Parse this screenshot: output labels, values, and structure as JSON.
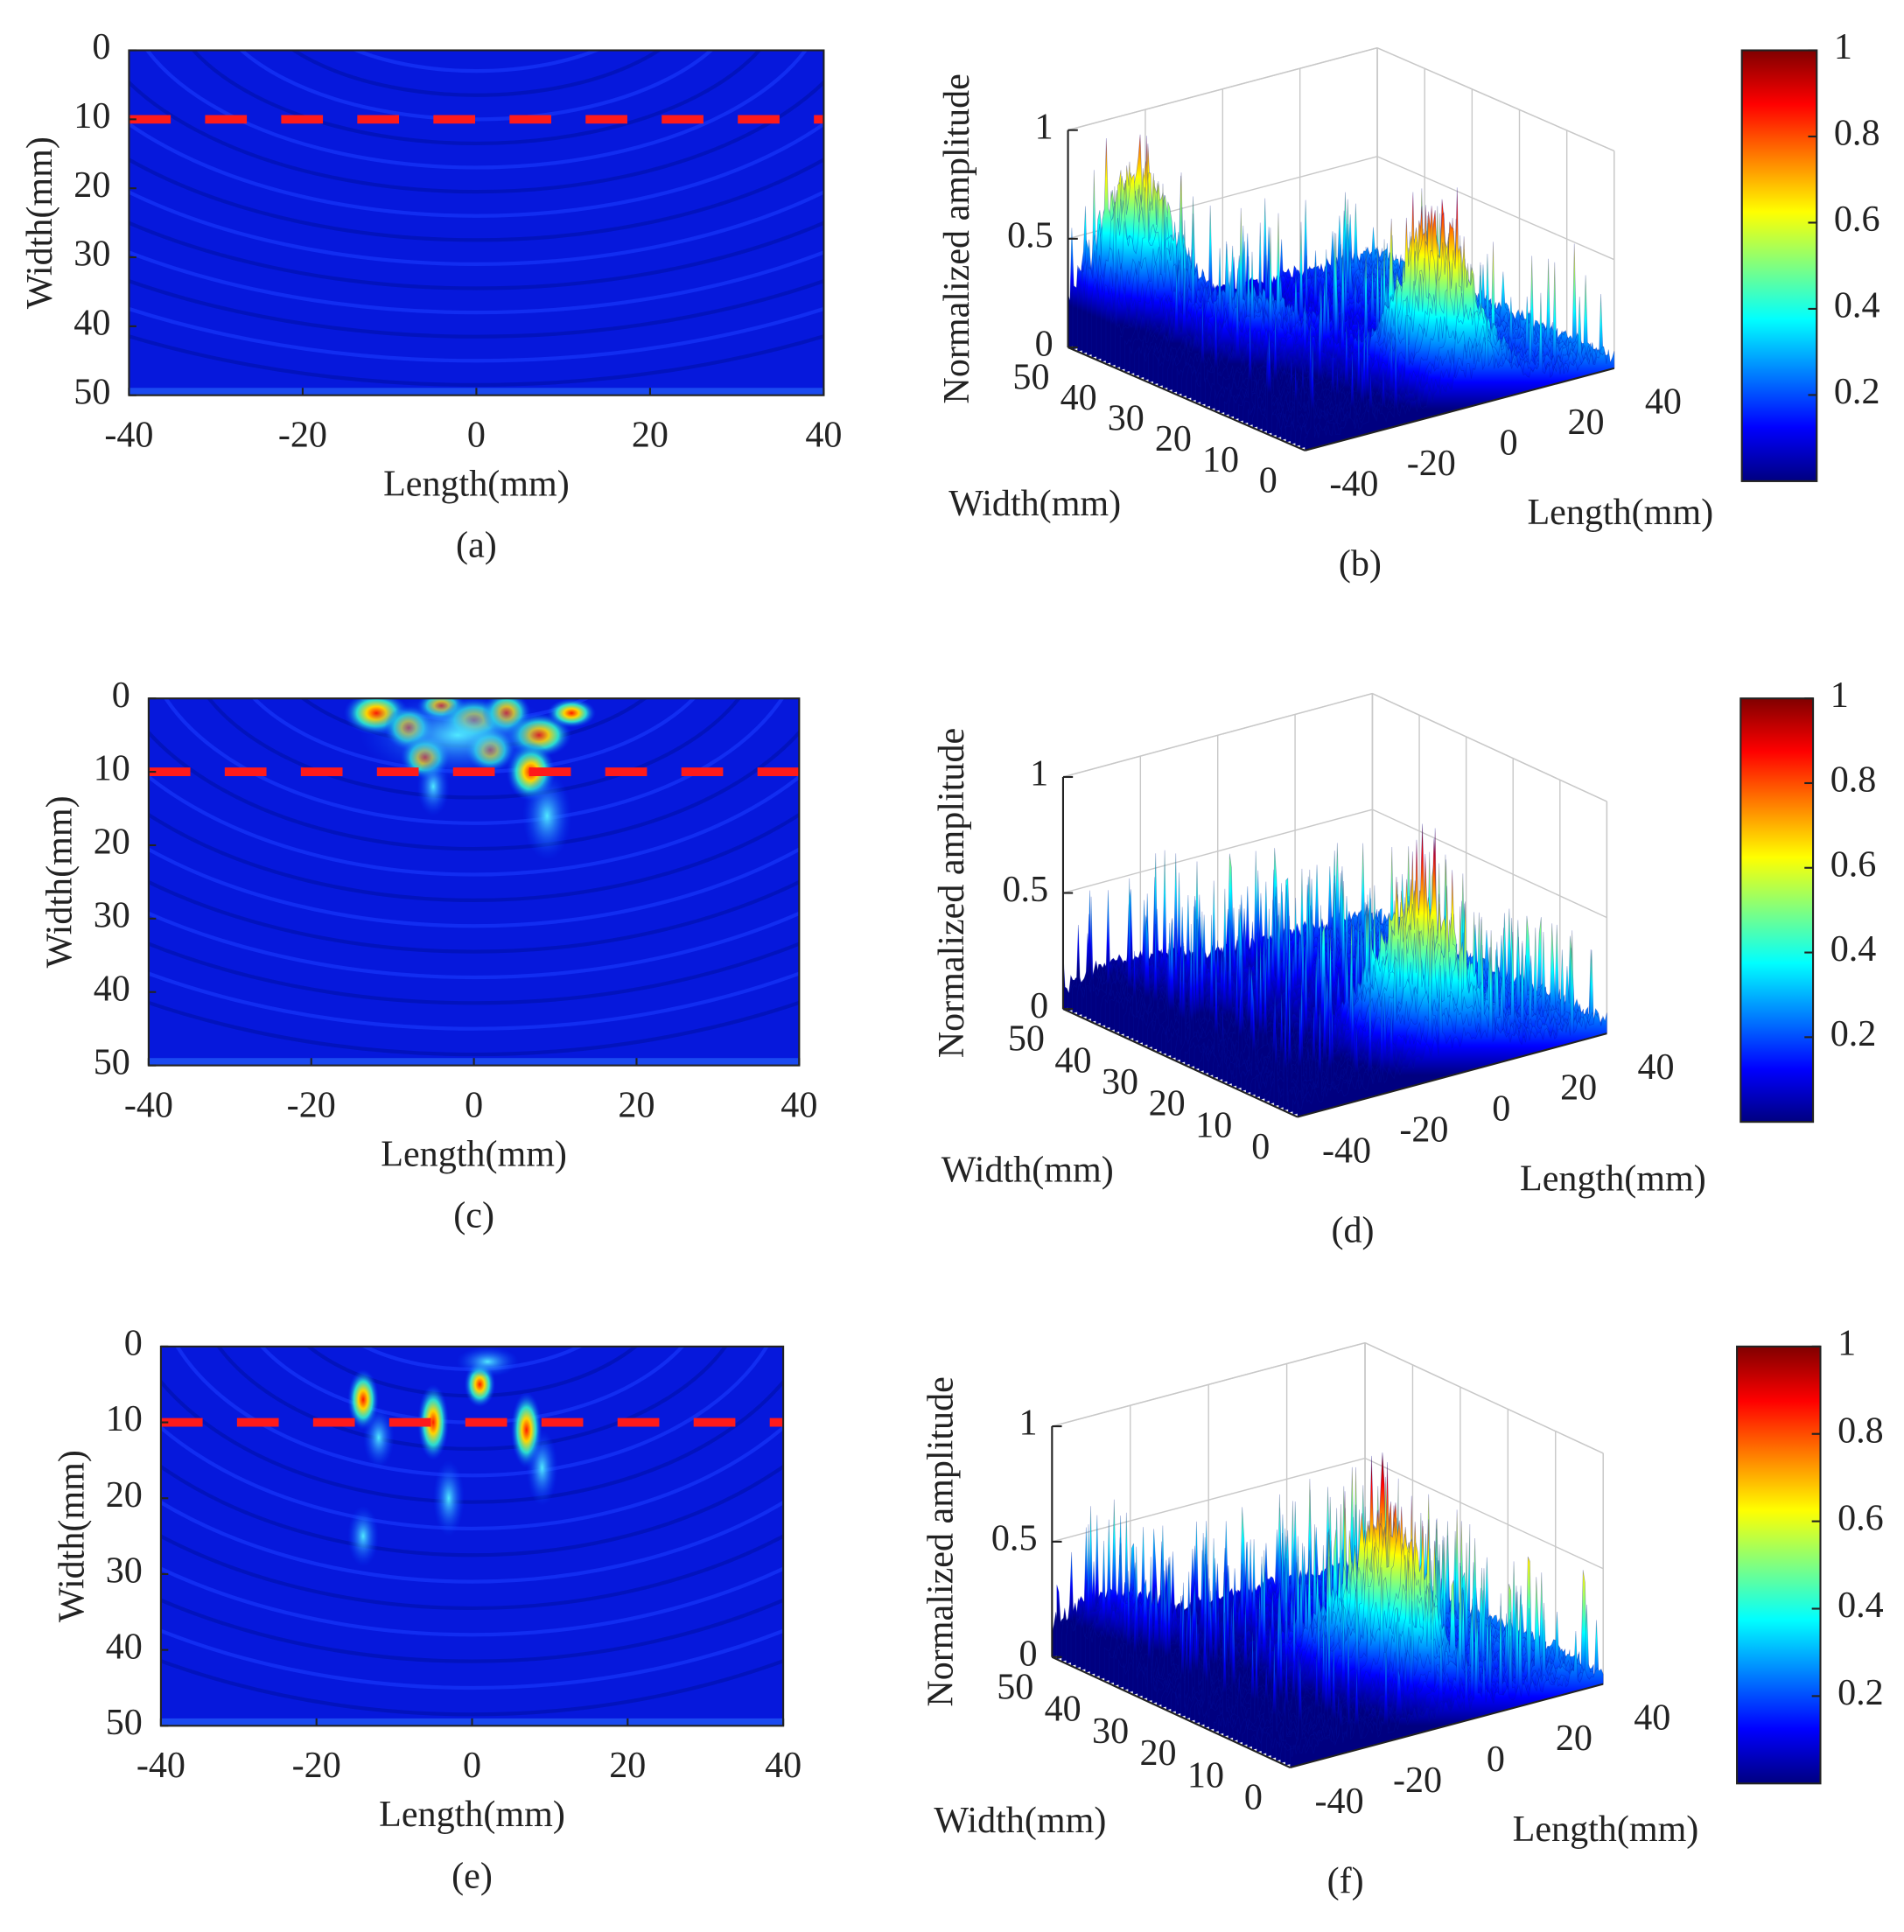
{
  "chart_data": [
    {
      "type": "heatmap",
      "caption": "(a)",
      "xlabel": "Length(mm)",
      "ylabel": "Width(mm)",
      "xlim": [
        -40,
        40
      ],
      "ylim": [
        0,
        50
      ],
      "yreverse": true,
      "xticks": [
        -40,
        -20,
        0,
        20,
        40
      ],
      "yticks": [
        0,
        10,
        20,
        30,
        40,
        50
      ],
      "reference_line": 10,
      "reference_color": "#ff1a1a"
    },
    {
      "type": "surface3d",
      "caption": "(b)",
      "zlabel": "Normalized amplitude",
      "xlabel": "Width(mm)",
      "ylabel": "Length(mm)",
      "xlim": [
        0,
        50
      ],
      "ylim": [
        -40,
        40
      ],
      "zlim": [
        0,
        1
      ],
      "xticks": [
        50,
        40,
        30,
        20,
        10,
        0
      ],
      "yticks": [
        -40,
        -20,
        0,
        20,
        40
      ],
      "zticks": [
        0,
        0.5,
        1
      ],
      "grid": true,
      "colorbar": {
        "lim": [
          0,
          1
        ],
        "ticks": [
          0.2,
          0.4,
          0.6,
          0.8,
          1
        ]
      }
    },
    {
      "type": "heatmap",
      "caption": "(c)",
      "xlabel": "Length(mm)",
      "ylabel": "Width(mm)",
      "xlim": [
        -40,
        40
      ],
      "ylim": [
        0,
        50
      ],
      "yreverse": true,
      "xticks": [
        -40,
        -20,
        0,
        20,
        40
      ],
      "yticks": [
        0,
        10,
        20,
        30,
        40,
        50
      ],
      "reference_line": 10,
      "reference_color": "#ff1a1a"
    },
    {
      "type": "surface3d",
      "caption": "(d)",
      "zlabel": "Normalized amplitude",
      "xlabel": "Width(mm)",
      "ylabel": "Length(mm)",
      "xlim": [
        0,
        50
      ],
      "ylim": [
        -40,
        40
      ],
      "zlim": [
        0,
        1
      ],
      "xticks": [
        50,
        40,
        30,
        20,
        10,
        0
      ],
      "yticks": [
        -40,
        -20,
        0,
        20,
        40
      ],
      "zticks": [
        0,
        0.5,
        1
      ],
      "grid": true,
      "colorbar": {
        "lim": [
          0,
          1
        ],
        "ticks": [
          0.2,
          0.4,
          0.6,
          0.8,
          1
        ]
      }
    },
    {
      "type": "heatmap",
      "caption": "(e)",
      "xlabel": "Length(mm)",
      "ylabel": "Width(mm)",
      "xlim": [
        -40,
        40
      ],
      "ylim": [
        0,
        50
      ],
      "yreverse": true,
      "xticks": [
        -40,
        -20,
        0,
        20,
        40
      ],
      "yticks": [
        0,
        10,
        20,
        30,
        40,
        50
      ],
      "reference_line": 10,
      "reference_color": "#ff1a1a"
    },
    {
      "type": "surface3d",
      "caption": "(f)",
      "zlabel": "Normalized amplitude",
      "xlabel": "Width(mm)",
      "ylabel": "Length(mm)",
      "xlim": [
        0,
        50
      ],
      "ylim": [
        -40,
        40
      ],
      "zlim": [
        0,
        1
      ],
      "xticks": [
        50,
        40,
        30,
        20,
        10,
        0
      ],
      "yticks": [
        -40,
        -20,
        0,
        20,
        40
      ],
      "zticks": [
        0,
        0.5,
        1
      ],
      "grid": true,
      "colorbar": {
        "lim": [
          0,
          1
        ],
        "ticks": [
          0.2,
          0.4,
          0.6,
          0.8,
          1
        ]
      }
    }
  ]
}
